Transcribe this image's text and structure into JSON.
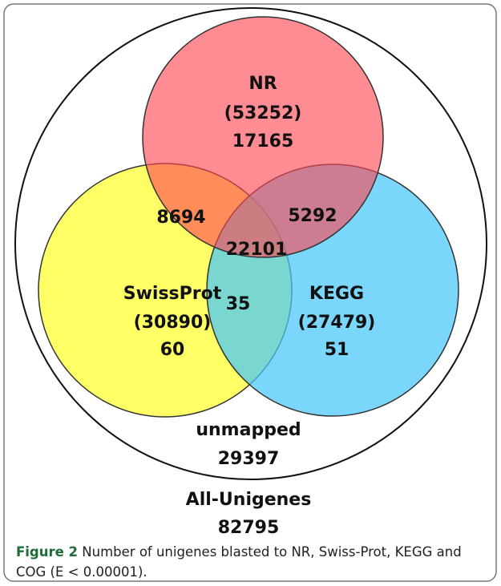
{
  "nodes": [
    {
      "label": "NR",
      "total": "(53252)",
      "unique": "17165"
    },
    {
      "label": "SwissProt",
      "total": "(30890)",
      "unique": "60"
    },
    {
      "label": "KEGG",
      "total": "(27479)",
      "unique": "51"
    }
  ],
  "overlaps": {
    "nr_swissprot": "8694",
    "nr_kegg": "5292",
    "all_three": "22101",
    "swissprot_kegg": "35"
  },
  "unmapped": {
    "label": "unmapped",
    "value": "29397"
  },
  "all": {
    "label": "All-Unigenes",
    "value": "82795"
  },
  "caption": {
    "figure": "Figure 2",
    "text": "Number of unigenes blasted to NR, Swiss-Prot, KEGG and COG (E < 0.00001)."
  }
}
